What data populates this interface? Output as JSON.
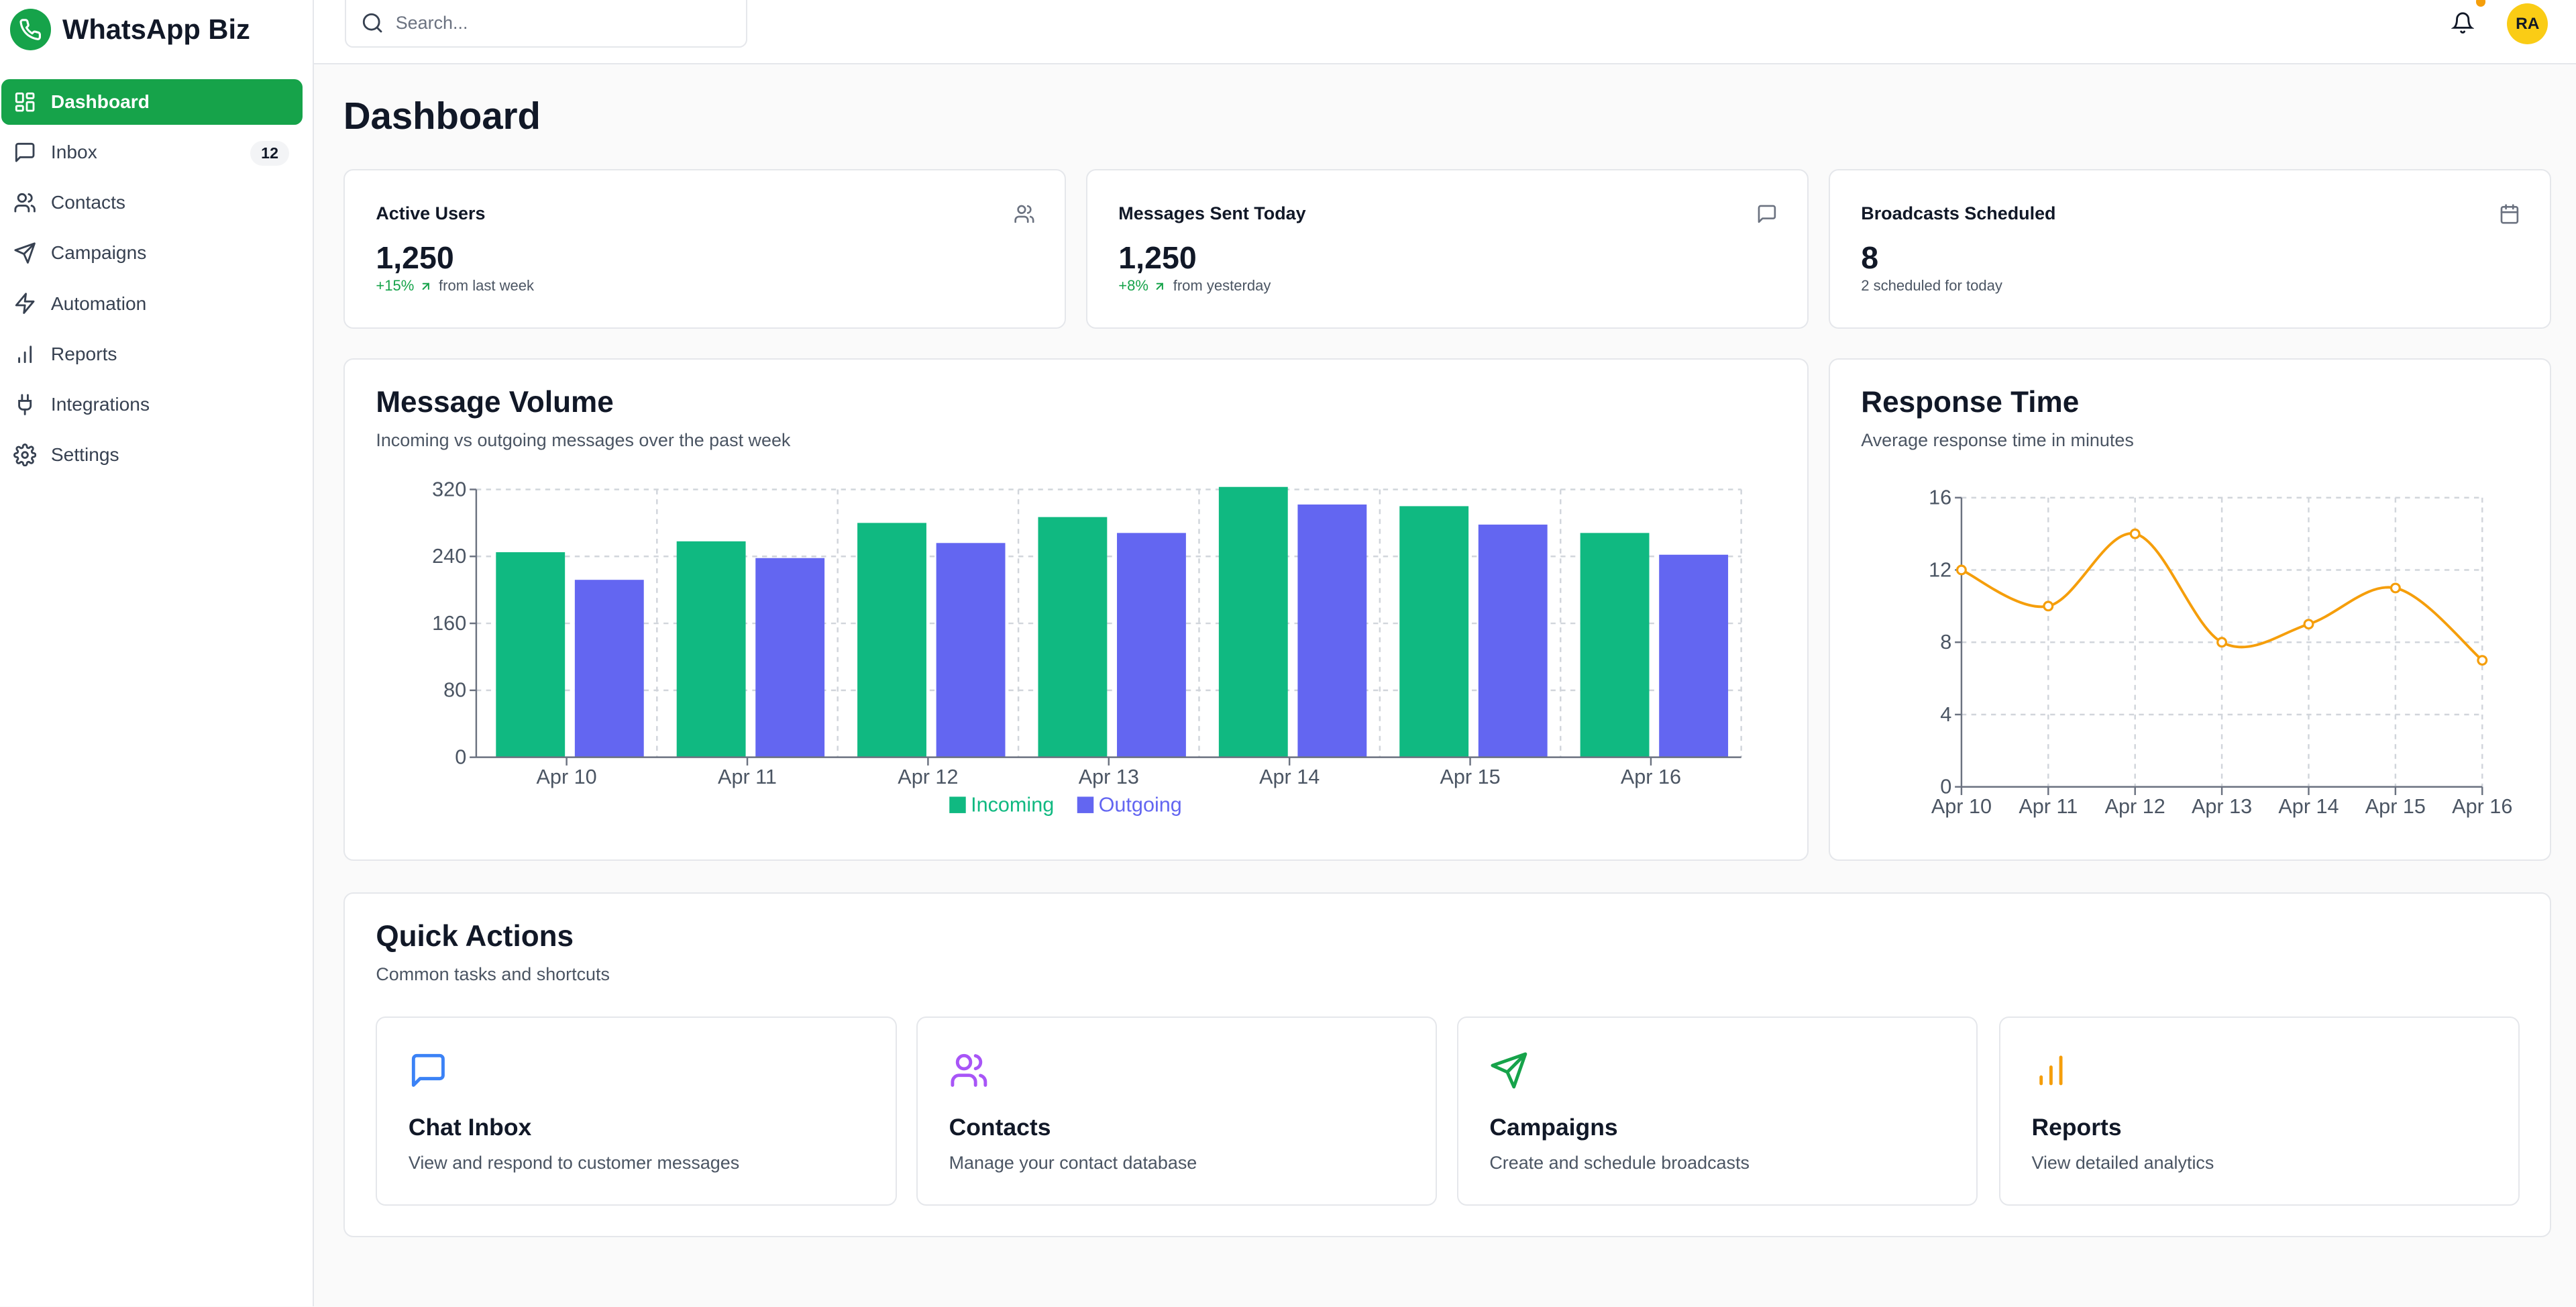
{
  "brand": {
    "name": "WhatsApp Biz",
    "color": "#16a34a"
  },
  "sidebar": {
    "items": [
      {
        "label": "Dashboard",
        "icon": "grid-icon",
        "active": true
      },
      {
        "label": "Inbox",
        "icon": "message-square-icon",
        "badge": "12"
      },
      {
        "label": "Contacts",
        "icon": "users-icon"
      },
      {
        "label": "Campaigns",
        "icon": "send-icon"
      },
      {
        "label": "Automation",
        "icon": "zap-icon"
      },
      {
        "label": "Reports",
        "icon": "bar-chart-icon"
      },
      {
        "label": "Integrations",
        "icon": "plug-icon"
      },
      {
        "label": "Settings",
        "icon": "gear-icon"
      }
    ]
  },
  "header": {
    "search_placeholder": "Search...",
    "avatar_initials": "RA"
  },
  "page": {
    "title": "Dashboard"
  },
  "stats": [
    {
      "title": "Active Users",
      "value": "1,250",
      "change": "+15%",
      "note": "from last week",
      "icon": "users-icon"
    },
    {
      "title": "Messages Sent Today",
      "value": "1,250",
      "change": "+8%",
      "note": "from yesterday",
      "icon": "message-square-icon"
    },
    {
      "title": "Broadcasts Scheduled",
      "value": "8",
      "change": "",
      "note": "2 scheduled for today",
      "icon": "calendar-icon"
    }
  ],
  "message_volume": {
    "title": "Message Volume",
    "subtitle": "Incoming vs outgoing messages over the past week"
  },
  "response_time": {
    "title": "Response Time",
    "subtitle": "Average response time in minutes"
  },
  "chart_data": [
    {
      "type": "bar",
      "title": "Message Volume",
      "categories": [
        "Apr 10",
        "Apr 11",
        "Apr 12",
        "Apr 13",
        "Apr 14",
        "Apr 15",
        "Apr 16"
      ],
      "series": [
        {
          "name": "Incoming",
          "color": "#10b981",
          "values": [
            245,
            258,
            280,
            287,
            323,
            300,
            268
          ]
        },
        {
          "name": "Outgoing",
          "color": "#6366f1",
          "values": [
            212,
            238,
            256,
            268,
            302,
            278,
            242
          ]
        }
      ],
      "ylim": [
        0,
        320
      ],
      "yticks": [
        "0",
        "80",
        "160",
        "240",
        "320"
      ],
      "grid": true,
      "legend": "bottom"
    },
    {
      "type": "line",
      "title": "Response Time",
      "categories": [
        "Apr 10",
        "Apr 11",
        "Apr 12",
        "Apr 13",
        "Apr 14",
        "Apr 15",
        "Apr 16"
      ],
      "series": [
        {
          "name": "Response Time",
          "color": "#f59e0b",
          "values": [
            12,
            10,
            14,
            8,
            9,
            11,
            7
          ]
        }
      ],
      "ylim": [
        0,
        16
      ],
      "yticks": [
        "0",
        "4",
        "8",
        "12",
        "16"
      ],
      "grid": true
    }
  ],
  "quick_actions": {
    "title": "Quick Actions",
    "subtitle": "Common tasks and shortcuts",
    "items": [
      {
        "title": "Chat Inbox",
        "desc": "View and respond to customer messages",
        "icon": "message-square-icon",
        "color": "#3b82f6"
      },
      {
        "title": "Contacts",
        "desc": "Manage your contact database",
        "icon": "users-icon",
        "color": "#a855f7"
      },
      {
        "title": "Campaigns",
        "desc": "Create and schedule broadcasts",
        "icon": "send-icon",
        "color": "#16a34a"
      },
      {
        "title": "Reports",
        "desc": "View detailed analytics",
        "icon": "bar-chart-icon",
        "color": "#f59e0b"
      }
    ]
  }
}
